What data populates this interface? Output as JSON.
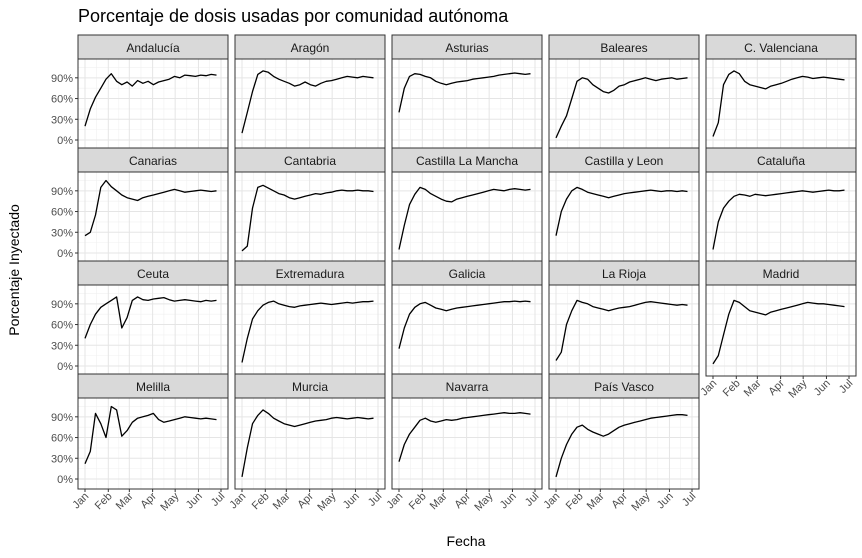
{
  "chart_data": {
    "type": "line",
    "title": "Porcentaje de dosis usadas por comunidad autónoma",
    "xlabel": "Fecha",
    "ylabel": "Porcentaje Inyectado",
    "x_ticks": [
      "Jan",
      "Feb",
      "Mar",
      "Apr",
      "May",
      "Jun",
      "Jul"
    ],
    "y_ticks": [
      "0%",
      "30%",
      "60%",
      "90%"
    ],
    "ylim": [
      0,
      110
    ],
    "layout": "facet_wrap (ncol=5, shared axes)",
    "x_points": [
      "Jan 01",
      "Jan 08",
      "Jan 15",
      "Jan 22",
      "Jan 29",
      "Feb 05",
      "Feb 12",
      "Feb 19",
      "Feb 26",
      "Mar 05",
      "Mar 12",
      "Mar 19",
      "Mar 26",
      "Apr 02",
      "Apr 09",
      "Apr 16",
      "Apr 23",
      "Apr 30",
      "May 07",
      "May 14",
      "May 21",
      "May 28",
      "Jun 04",
      "Jun 11",
      "Jun 18",
      "Jun 25"
    ],
    "series": [
      {
        "name": "Andalucía",
        "values": [
          20,
          45,
          62,
          75,
          88,
          96,
          85,
          80,
          84,
          78,
          86,
          82,
          85,
          80,
          84,
          86,
          88,
          92,
          90,
          94,
          93,
          92,
          94,
          93,
          95,
          94
        ]
      },
      {
        "name": "Aragón",
        "values": [
          10,
          40,
          70,
          95,
          100,
          98,
          92,
          88,
          85,
          82,
          78,
          80,
          84,
          80,
          78,
          82,
          85,
          86,
          88,
          90,
          92,
          91,
          90,
          92,
          91,
          90
        ]
      },
      {
        "name": "Asturias",
        "values": [
          40,
          75,
          92,
          96,
          95,
          92,
          90,
          85,
          82,
          80,
          82,
          84,
          85,
          86,
          88,
          89,
          90,
          91,
          92,
          94,
          95,
          96,
          97,
          96,
          95,
          96
        ]
      },
      {
        "name": "Baleares",
        "values": [
          3,
          20,
          35,
          60,
          85,
          90,
          88,
          80,
          75,
          70,
          68,
          72,
          78,
          80,
          84,
          86,
          88,
          90,
          88,
          86,
          88,
          89,
          90,
          88,
          89,
          90
        ]
      },
      {
        "name": "C. Valenciana",
        "values": [
          5,
          25,
          80,
          95,
          100,
          96,
          85,
          80,
          78,
          76,
          74,
          78,
          80,
          82,
          85,
          88,
          90,
          92,
          91,
          89,
          90,
          91,
          90,
          89,
          88,
          87
        ]
      },
      {
        "name": "Canarias",
        "values": [
          25,
          30,
          55,
          95,
          105,
          96,
          90,
          84,
          80,
          78,
          76,
          80,
          82,
          84,
          86,
          88,
          90,
          92,
          90,
          88,
          89,
          90,
          91,
          90,
          89,
          90
        ]
      },
      {
        "name": "Cantabria",
        "values": [
          3,
          10,
          65,
          95,
          98,
          94,
          90,
          86,
          84,
          80,
          78,
          80,
          82,
          84,
          86,
          85,
          87,
          88,
          90,
          91,
          90,
          90,
          91,
          90,
          90,
          89
        ]
      },
      {
        "name": "Castilla La Mancha",
        "values": [
          5,
          40,
          70,
          85,
          95,
          92,
          86,
          82,
          78,
          75,
          74,
          78,
          80,
          82,
          84,
          86,
          88,
          90,
          92,
          91,
          90,
          92,
          93,
          92,
          91,
          92
        ]
      },
      {
        "name": "Castilla y Leon",
        "values": [
          25,
          60,
          78,
          90,
          95,
          92,
          88,
          86,
          84,
          82,
          80,
          82,
          84,
          86,
          87,
          88,
          89,
          90,
          91,
          90,
          89,
          90,
          90,
          89,
          90,
          89
        ]
      },
      {
        "name": "Cataluña",
        "values": [
          5,
          45,
          65,
          75,
          82,
          85,
          84,
          82,
          85,
          84,
          83,
          84,
          85,
          86,
          87,
          88,
          89,
          90,
          89,
          88,
          89,
          90,
          91,
          90,
          90,
          91
        ]
      },
      {
        "name": "Ceuta",
        "values": [
          40,
          60,
          75,
          85,
          90,
          95,
          100,
          55,
          70,
          95,
          100,
          96,
          95,
          97,
          98,
          99,
          96,
          94,
          95,
          96,
          95,
          94,
          93,
          95,
          94,
          95
        ]
      },
      {
        "name": "Extremadura",
        "values": [
          5,
          40,
          68,
          80,
          88,
          92,
          94,
          90,
          88,
          86,
          85,
          87,
          88,
          89,
          90,
          91,
          90,
          89,
          90,
          91,
          92,
          91,
          92,
          93,
          93,
          94
        ]
      },
      {
        "name": "Galicia",
        "values": [
          25,
          55,
          75,
          85,
          90,
          92,
          88,
          84,
          82,
          80,
          82,
          84,
          85,
          86,
          87,
          88,
          89,
          90,
          91,
          92,
          93,
          93,
          94,
          93,
          94,
          93
        ]
      },
      {
        "name": "La Rioja",
        "values": [
          8,
          20,
          60,
          80,
          95,
          92,
          90,
          86,
          84,
          82,
          80,
          82,
          84,
          85,
          86,
          88,
          90,
          92,
          93,
          92,
          91,
          90,
          89,
          88,
          89,
          88
        ]
      },
      {
        "name": "Madrid",
        "values": [
          3,
          15,
          45,
          75,
          95,
          92,
          86,
          80,
          78,
          76,
          74,
          78,
          80,
          82,
          84,
          86,
          88,
          90,
          92,
          91,
          90,
          90,
          89,
          88,
          87,
          86
        ]
      },
      {
        "name": "Melilla",
        "values": [
          22,
          40,
          95,
          80,
          60,
          105,
          100,
          62,
          70,
          82,
          88,
          90,
          92,
          95,
          86,
          82,
          84,
          86,
          88,
          90,
          89,
          88,
          87,
          88,
          87,
          86
        ]
      },
      {
        "name": "Murcia",
        "values": [
          3,
          45,
          80,
          92,
          100,
          95,
          88,
          84,
          80,
          78,
          76,
          78,
          80,
          82,
          84,
          85,
          86,
          88,
          89,
          88,
          87,
          88,
          89,
          88,
          87,
          88
        ]
      },
      {
        "name": "Navarra",
        "values": [
          25,
          50,
          65,
          75,
          85,
          88,
          84,
          82,
          84,
          86,
          85,
          86,
          88,
          89,
          90,
          91,
          92,
          93,
          94,
          95,
          96,
          95,
          95,
          96,
          95,
          94
        ]
      },
      {
        "name": "País Vasco",
        "values": [
          3,
          30,
          50,
          65,
          75,
          78,
          72,
          68,
          65,
          62,
          65,
          70,
          75,
          78,
          80,
          82,
          84,
          86,
          88,
          89,
          90,
          91,
          92,
          93,
          93,
          92
        ]
      }
    ]
  }
}
